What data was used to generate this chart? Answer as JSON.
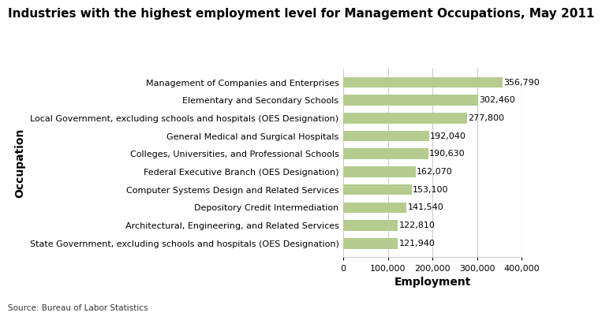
{
  "title": "Industries with the highest employment level for Management Occupations, May 2011",
  "categories": [
    "State Government, excluding schools and hospitals (OES Designation)",
    "Architectural, Engineering, and Related Services",
    "Depository Credit Intermediation",
    "Computer Systems Design and Related Services",
    "Federal Executive Branch (OES Designation)",
    "Colleges, Universities, and Professional Schools",
    "General Medical and Surgical Hospitals",
    "Local Government, excluding schools and hospitals (OES Designation)",
    "Elementary and Secondary Schools",
    "Management of Companies and Enterprises"
  ],
  "values": [
    121940,
    122810,
    141540,
    153100,
    162070,
    190630,
    192040,
    277800,
    302460,
    356790
  ],
  "labels": [
    "121,940",
    "122,810",
    "141,540",
    "153,100",
    "162,070",
    "190,630",
    "192,040",
    "277,800",
    "302,460",
    "356,790"
  ],
  "bar_color": "#b5cc8e",
  "xlabel": "Employment",
  "ylabel": "Occupation",
  "xlim": [
    0,
    400000
  ],
  "xticks": [
    0,
    100000,
    200000,
    300000,
    400000
  ],
  "xtick_labels": [
    "0",
    "100,000",
    "200,000",
    "300,000",
    "400,000"
  ],
  "source": "Source: Bureau of Labor Statistics",
  "title_fontsize": 11,
  "label_fontsize": 8,
  "tick_fontsize": 8,
  "axis_label_fontsize": 10,
  "background_color": "#ffffff",
  "grid_color": "#cccccc"
}
